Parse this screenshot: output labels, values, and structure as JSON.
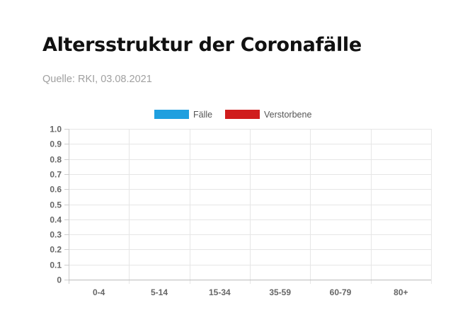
{
  "header": {
    "title": "Altersstruktur der Coronafälle",
    "source": "Quelle: RKI, 03.08.2021"
  },
  "chart_data": {
    "type": "bar",
    "title": "",
    "xlabel": "",
    "ylabel": "",
    "categories": [
      "0-4",
      "5-14",
      "15-34",
      "35-59",
      "60-79",
      "80+"
    ],
    "series": [
      {
        "name": "Fälle",
        "color": "#1f9fdf",
        "values": [
          0,
          0,
          0,
          0,
          0,
          0
        ]
      },
      {
        "name": "Verstorbene",
        "color": "#d01c1c",
        "values": [
          0,
          0,
          0,
          0,
          0,
          0
        ]
      }
    ],
    "ylim": [
      0,
      1
    ],
    "yticks": [
      "0",
      "0.1",
      "0.2",
      "0.3",
      "0.4",
      "0.5",
      "0.6",
      "0.7",
      "0.8",
      "0.9",
      "1.0"
    ],
    "grid": true,
    "legend_position": "top-center"
  }
}
